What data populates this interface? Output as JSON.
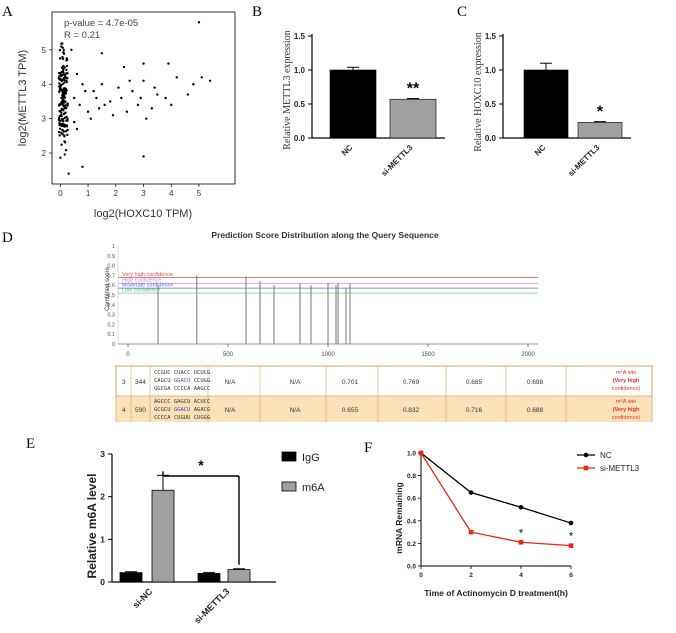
{
  "chart_data": [
    {
      "panel": "A",
      "type": "scatter",
      "xlabel": "log2(HOXC10 TPM)",
      "ylabel": "log2(METTL3 TPM)",
      "xlim": [
        -0.3,
        6.3
      ],
      "ylim": [
        1.1,
        6.1
      ],
      "xticks": [
        "0",
        "1",
        "2",
        "3",
        "4",
        "5"
      ],
      "yticks": [
        "2",
        "3",
        "4",
        "5"
      ],
      "annotation_p": "p-value = 4.7e-05",
      "annotation_r": "R = 0.21",
      "points": [
        [
          5.0,
          5.8
        ],
        [
          0.4,
          5.0
        ],
        [
          1.5,
          4.9
        ],
        [
          3.0,
          4.6
        ],
        [
          3.9,
          4.6
        ],
        [
          2.3,
          4.5
        ],
        [
          0.6,
          4.3
        ],
        [
          4.2,
          4.2
        ],
        [
          2.5,
          4.1
        ],
        [
          3.0,
          4.1
        ],
        [
          5.1,
          4.2
        ],
        [
          5.4,
          4.1
        ],
        [
          4.8,
          4.0
        ],
        [
          0.8,
          4.0
        ],
        [
          1.5,
          4.0
        ],
        [
          2.1,
          3.9
        ],
        [
          3.4,
          3.9
        ],
        [
          0.9,
          3.8
        ],
        [
          1.2,
          3.8
        ],
        [
          2.6,
          3.8
        ],
        [
          3.5,
          3.7
        ],
        [
          4.6,
          3.7
        ],
        [
          0.5,
          3.6
        ],
        [
          1.3,
          3.6
        ],
        [
          2.2,
          3.6
        ],
        [
          3.8,
          3.6
        ],
        [
          0.7,
          3.4
        ],
        [
          1.6,
          3.4
        ],
        [
          2.8,
          3.4
        ],
        [
          3.3,
          3.3
        ],
        [
          4.0,
          3.4
        ],
        [
          1.0,
          3.2
        ],
        [
          1.9,
          3.1
        ],
        [
          3.1,
          3.0
        ],
        [
          0.5,
          2.9
        ],
        [
          1.1,
          3.0
        ],
        [
          3.0,
          1.9
        ],
        [
          0.8,
          1.6
        ],
        [
          0.3,
          1.4
        ],
        [
          1.4,
          3.3
        ],
        [
          2.4,
          3.2
        ],
        [
          0.6,
          2.7
        ],
        [
          1.8,
          3.5
        ],
        [
          2.9,
          3.6
        ]
      ],
      "dense_cluster": "x 0-0.3, y 1.5-5.6"
    },
    {
      "panel": "B",
      "type": "bar",
      "ylabel": "Relative METTL3 expression",
      "categories": [
        "NC",
        "si-METTL3"
      ],
      "values": [
        1.0,
        0.57
      ],
      "errors": [
        0.04,
        0.01
      ],
      "ylim": [
        0,
        1.5
      ],
      "yticks": [
        "0.0",
        "0.5",
        "1.0",
        "1.5"
      ],
      "significance": "**"
    },
    {
      "panel": "C",
      "type": "bar",
      "ylabel": "Relative HOXC10 expression",
      "categories": [
        "NC",
        "si-METTL3"
      ],
      "values": [
        1.0,
        0.23
      ],
      "errors": [
        0.1,
        0.01
      ],
      "ylim": [
        0,
        1.5
      ],
      "yticks": [
        "0.0",
        "0.5",
        "1.0",
        "1.5"
      ],
      "significance": "*"
    },
    {
      "panel": "D",
      "type": "bar",
      "title": "Prediction Score Distribution along the Query Sequence",
      "ylabel": "Combined score",
      "xlim": [
        -50,
        2050
      ],
      "ylim": [
        0,
        1
      ],
      "xticks": [
        "0",
        "500",
        "1000",
        "1500",
        "2000"
      ],
      "yticks": [
        "0",
        "0.1",
        "0.2",
        "0.3",
        "0.4",
        "0.5",
        "0.6",
        "0.7",
        "0.8",
        "0.9",
        "1"
      ],
      "thresholds": [
        {
          "label": "Very high confidence",
          "y": 0.68,
          "color": "#d9534f"
        },
        {
          "label": "High confidence",
          "y": 0.62,
          "color": "#c38fd6"
        },
        {
          "label": "Moderate confidence",
          "y": 0.57,
          "color": "#5b6bd6"
        },
        {
          "label": "Low confidence",
          "y": 0.52,
          "color": "#4fc46a"
        }
      ],
      "sites": [
        [
          150,
          0.6
        ],
        [
          344,
          0.7
        ],
        [
          590,
          0.69
        ],
        [
          660,
          0.64
        ],
        [
          730,
          0.6
        ],
        [
          860,
          0.62
        ],
        [
          915,
          0.6
        ],
        [
          1000,
          0.62
        ],
        [
          1040,
          0.6
        ],
        [
          1050,
          0.62
        ],
        [
          1090,
          0.57
        ],
        [
          1110,
          0.62
        ]
      ]
    },
    {
      "panel": "E",
      "type": "bar",
      "ylabel": "Relative m6A level",
      "categories": [
        "si-NC",
        "si-METTL3"
      ],
      "series": [
        {
          "name": "IgG",
          "values": [
            0.22,
            0.2
          ],
          "errors": [
            0.02,
            0.02
          ],
          "color": "#000000"
        },
        {
          "name": "m6A",
          "values": [
            2.15,
            0.29
          ],
          "errors": [
            0.35,
            0.02
          ],
          "color": "#a0a0a0"
        }
      ],
      "ylim": [
        0,
        3
      ],
      "yticks": [
        "0",
        "1",
        "2",
        "3"
      ],
      "significance": "*"
    },
    {
      "panel": "F",
      "type": "line",
      "xlabel": "Time of Actinomycin D treatment(h)",
      "ylabel": "mRNA Remaining",
      "x": [
        0,
        2,
        4,
        6
      ],
      "xlim": [
        0,
        6
      ],
      "ylim": [
        0,
        1.0
      ],
      "xticks": [
        "0",
        "2",
        "4",
        "6"
      ],
      "yticks": [
        "0.0",
        "0.2",
        "0.4",
        "0.6",
        "0.8",
        "1.0"
      ],
      "series": [
        {
          "name": "NC",
          "values": [
            1.0,
            0.65,
            0.52,
            0.38
          ],
          "color": "#000000"
        },
        {
          "name": "si-METTL3",
          "values": [
            1.0,
            0.3,
            0.21,
            0.18
          ],
          "color": "#e8261b"
        }
      ],
      "significance": [
        "",
        "",
        "*",
        "*"
      ]
    }
  ],
  "panel_letters": {
    "a": "A",
    "b": "B",
    "c": "C",
    "d": "D",
    "e": "E",
    "f": "F"
  },
  "table": {
    "rows": [
      {
        "idx": "3",
        "pos": "344",
        "seq1": "CCGUC CUACC UCUCG",
        "seq2a": "CAGCU ",
        "seq2b": "GGACU",
        "seq2c": " CCUGG",
        "seq3": "GGCGA CCCCA AAGCC",
        "c1": "N/A",
        "c2": "N/A",
        "c3": "0.701",
        "c4": "0.769",
        "c5": "0.685",
        "c6": "0.698",
        "site1": "m⁶A site",
        "site2": "(Very high",
        "site3": "confidence)"
      },
      {
        "idx": "4",
        "pos": "590",
        "seq1": "AGCCC GAGCU ACUCC",
        "seq2a": "GCGCU ",
        "seq2b": "GGACU",
        "seq2c": " AGACG",
        "seq3": "CCCCA CUGUU CUGGG",
        "c1": "N/A",
        "c2": "N/A",
        "c3": "0.655",
        "c4": "0.832",
        "c5": "0.716",
        "c6": "0.688",
        "site1": "m⁶A site",
        "site2": "(Very high",
        "site3": "confidence)"
      }
    ]
  }
}
